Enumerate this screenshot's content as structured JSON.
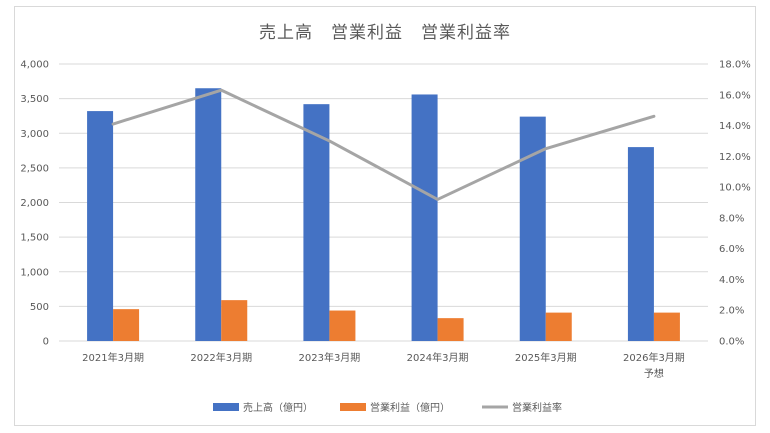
{
  "chart_data": {
    "type": "bar",
    "title": "売上高　営業利益　営業利益率",
    "categories": [
      [
        "2021年3月期"
      ],
      [
        "2022年3月期"
      ],
      [
        "2023年3月期"
      ],
      [
        "2024年3月期"
      ],
      [
        "2025年3月期"
      ],
      [
        "2026年3月期",
        "予想"
      ]
    ],
    "series": [
      {
        "name": "売上高（億円）",
        "type": "bar",
        "axis": "left",
        "color": "#4472C4",
        "values": [
          3320,
          3650,
          3420,
          3560,
          3240,
          2800
        ]
      },
      {
        "name": "営業利益（億円）",
        "type": "bar",
        "axis": "left",
        "color": "#ED7D31",
        "values": [
          460,
          590,
          440,
          330,
          410,
          410
        ]
      },
      {
        "name": "営業利益率",
        "type": "line",
        "axis": "right",
        "color": "#A5A5A5",
        "values": [
          14.1,
          16.3,
          13.0,
          9.2,
          12.5,
          14.6
        ]
      }
    ],
    "y_left": {
      "min": 0,
      "max": 4000,
      "ticks": [
        "0",
        "500",
        "1,000",
        "1,500",
        "2,000",
        "2,500",
        "3,000",
        "3,500",
        "4,000"
      ]
    },
    "y_right": {
      "min": 0,
      "max": 18,
      "ticks": [
        "0.0%",
        "2.0%",
        "4.0%",
        "6.0%",
        "8.0%",
        "10.0%",
        "12.0%",
        "14.0%",
        "16.0%",
        "18.0%"
      ]
    },
    "grid": true,
    "legend_position": "bottom"
  }
}
